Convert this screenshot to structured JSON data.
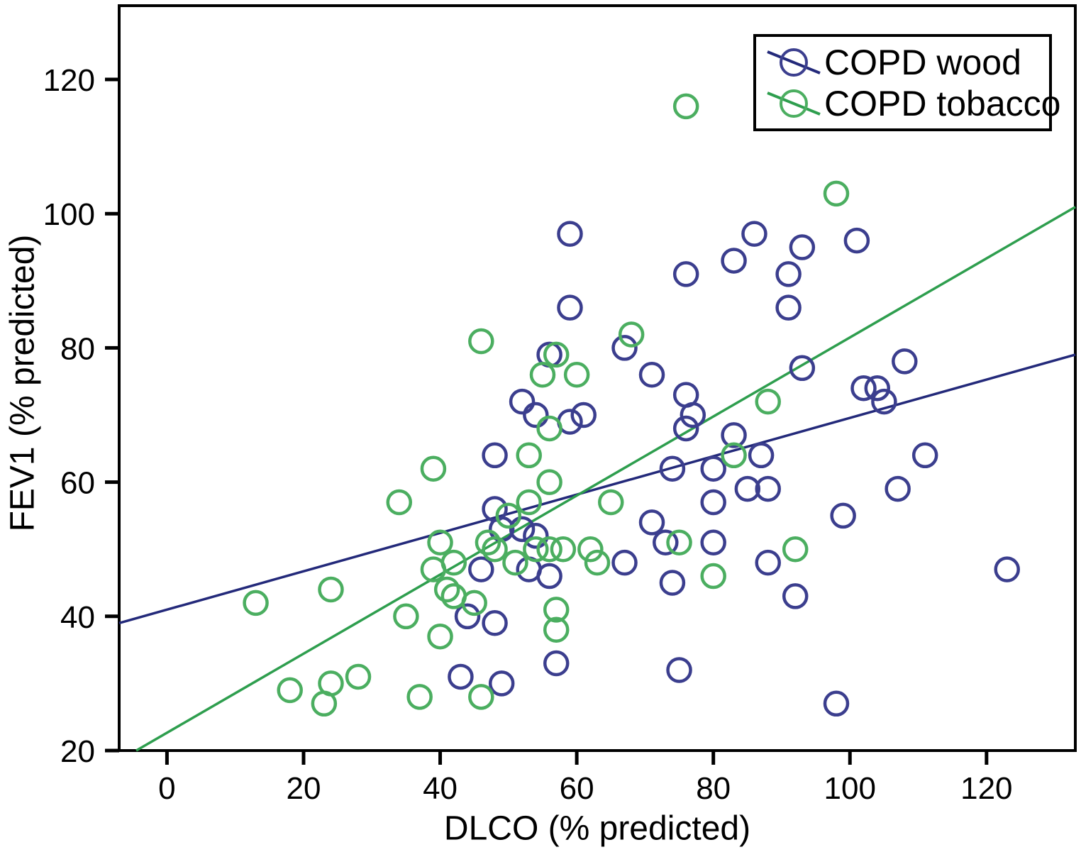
{
  "chart_data": {
    "type": "scatter",
    "title": "",
    "xlabel": "DLCO (% predicted)",
    "ylabel": "FEV1 (% predicted)",
    "xlim": [
      -7,
      133
    ],
    "ylim": [
      20,
      131
    ],
    "xticks": [
      0,
      20,
      40,
      60,
      80,
      100,
      120
    ],
    "yticks": [
      20,
      40,
      60,
      80,
      100,
      120
    ],
    "grid": false,
    "legend_position": "top-right",
    "axis_color": "#000000",
    "background_color": "#ffffff",
    "series": [
      {
        "name": "COPD wood",
        "marker": "open-circle",
        "marker_color": "#3b3e8e",
        "trend_color": "#23297a",
        "points": [
          [
            59,
            97
          ],
          [
            86,
            97
          ],
          [
            101,
            96
          ],
          [
            93,
            95
          ],
          [
            83,
            93
          ],
          [
            76,
            91
          ],
          [
            91,
            91
          ],
          [
            59,
            86
          ],
          [
            91,
            86
          ],
          [
            67,
            80
          ],
          [
            56,
            79
          ],
          [
            108,
            78
          ],
          [
            93,
            77
          ],
          [
            71,
            76
          ],
          [
            76,
            73
          ],
          [
            102,
            74
          ],
          [
            104,
            74
          ],
          [
            105,
            72
          ],
          [
            52,
            72
          ],
          [
            77,
            70
          ],
          [
            54,
            70
          ],
          [
            61,
            70
          ],
          [
            59,
            69
          ],
          [
            76,
            68
          ],
          [
            83,
            67
          ],
          [
            48,
            64
          ],
          [
            111,
            64
          ],
          [
            87,
            64
          ],
          [
            74,
            62
          ],
          [
            80,
            62
          ],
          [
            85,
            59
          ],
          [
            88,
            59
          ],
          [
            107,
            59
          ],
          [
            80,
            57
          ],
          [
            99,
            55
          ],
          [
            48,
            56
          ],
          [
            49,
            53
          ],
          [
            52,
            53
          ],
          [
            54,
            52
          ],
          [
            71,
            54
          ],
          [
            73,
            51
          ],
          [
            80,
            51
          ],
          [
            67,
            48
          ],
          [
            88,
            48
          ],
          [
            46,
            47
          ],
          [
            53,
            47
          ],
          [
            56,
            46
          ],
          [
            74,
            45
          ],
          [
            92,
            43
          ],
          [
            123,
            47
          ],
          [
            44,
            40
          ],
          [
            48,
            39
          ],
          [
            57,
            33
          ],
          [
            75,
            32
          ],
          [
            43,
            31
          ],
          [
            49,
            30
          ],
          [
            98,
            27
          ]
        ],
        "trend_line": {
          "x": [
            -7,
            133
          ],
          "y": [
            39,
            79
          ]
        }
      },
      {
        "name": "COPD tobacco",
        "marker": "open-circle",
        "marker_color": "#4bae60",
        "trend_color": "#2e9e4e",
        "points": [
          [
            76,
            116
          ],
          [
            98,
            103
          ],
          [
            68,
            82
          ],
          [
            46,
            81
          ],
          [
            57,
            79
          ],
          [
            55,
            76
          ],
          [
            60,
            76
          ],
          [
            88,
            72
          ],
          [
            56,
            68
          ],
          [
            53,
            64
          ],
          [
            83,
            64
          ],
          [
            39,
            62
          ],
          [
            56,
            60
          ],
          [
            34,
            57
          ],
          [
            53,
            57
          ],
          [
            65,
            57
          ],
          [
            50,
            55
          ],
          [
            47,
            51
          ],
          [
            40,
            51
          ],
          [
            75,
            51
          ],
          [
            48,
            50
          ],
          [
            54,
            50
          ],
          [
            56,
            50
          ],
          [
            58,
            50
          ],
          [
            62,
            50
          ],
          [
            51,
            48
          ],
          [
            63,
            48
          ],
          [
            42,
            48
          ],
          [
            39,
            47
          ],
          [
            80,
            46
          ],
          [
            92,
            50
          ],
          [
            24,
            44
          ],
          [
            41,
            44
          ],
          [
            42,
            43
          ],
          [
            13,
            42
          ],
          [
            45,
            42
          ],
          [
            35,
            40
          ],
          [
            40,
            37
          ],
          [
            57,
            41
          ],
          [
            57,
            38
          ],
          [
            28,
            31
          ],
          [
            24,
            30
          ],
          [
            18,
            29
          ],
          [
            23,
            27
          ],
          [
            37,
            28
          ],
          [
            46,
            28
          ]
        ],
        "trend_line": {
          "x": [
            -4.5,
            133
          ],
          "y": [
            20,
            101
          ]
        }
      }
    ]
  }
}
